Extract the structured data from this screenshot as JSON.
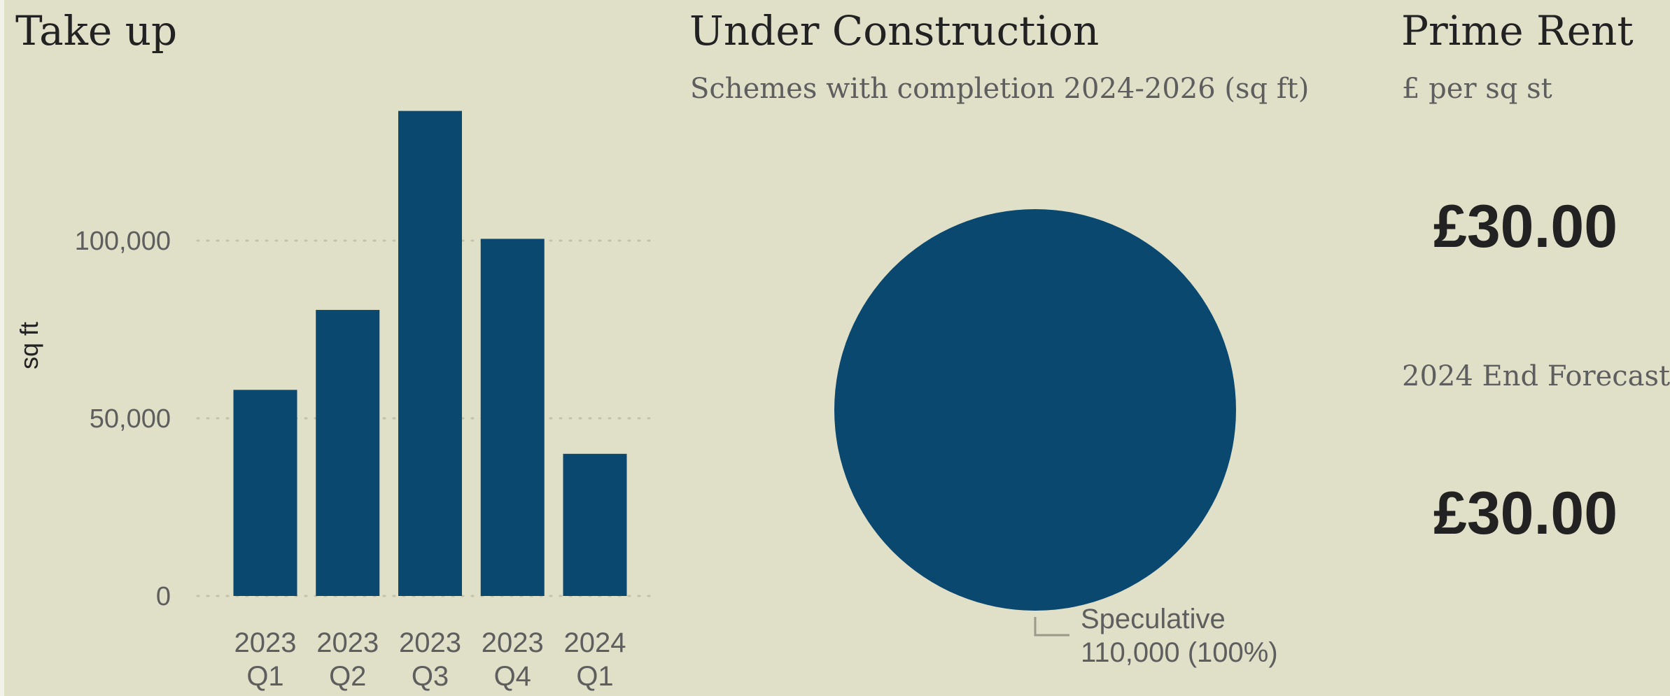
{
  "takeup": {
    "title": "Take up",
    "ylabel": "sq ft"
  },
  "construction": {
    "title": "Under Construction",
    "subtitle": "Schemes with completion 2024-2026 (sq ft)"
  },
  "rent": {
    "title": "Prime Rent",
    "subtitle": "£ per sq st",
    "current_value": "£30.00",
    "forecast_label": "2024 End Forecast",
    "forecast_value": "£30.00"
  },
  "colors": {
    "bar": "#0b4870",
    "background": "#e0e0c9",
    "gridline": "#c2c2ad",
    "tick_text": "#5e5e5e",
    "leader_line": "#9a9a8a"
  },
  "chart_data": [
    {
      "type": "bar",
      "title": "Take up",
      "ylabel": "sq ft",
      "categories": [
        [
          "2023",
          "Q1"
        ],
        [
          "2023",
          "Q2"
        ],
        [
          "2023",
          "Q3"
        ],
        [
          "2023",
          "Q4"
        ],
        [
          "2024",
          "Q1"
        ]
      ],
      "values": [
        58000,
        80500,
        136500,
        100500,
        40000
      ],
      "yticks": [
        0,
        50000,
        100000
      ],
      "ytick_labels": [
        "0",
        "50,000",
        "100,000"
      ],
      "ylim": [
        0,
        140000
      ],
      "grid": "dotted horizontal"
    },
    {
      "type": "pie",
      "title": "Under Construction",
      "subtitle": "Schemes with completion 2024-2026 (sq ft)",
      "slices": [
        {
          "label": "Speculative",
          "value": 110000,
          "value_label": "110,000 (100%)",
          "percent": 100
        }
      ]
    }
  ]
}
